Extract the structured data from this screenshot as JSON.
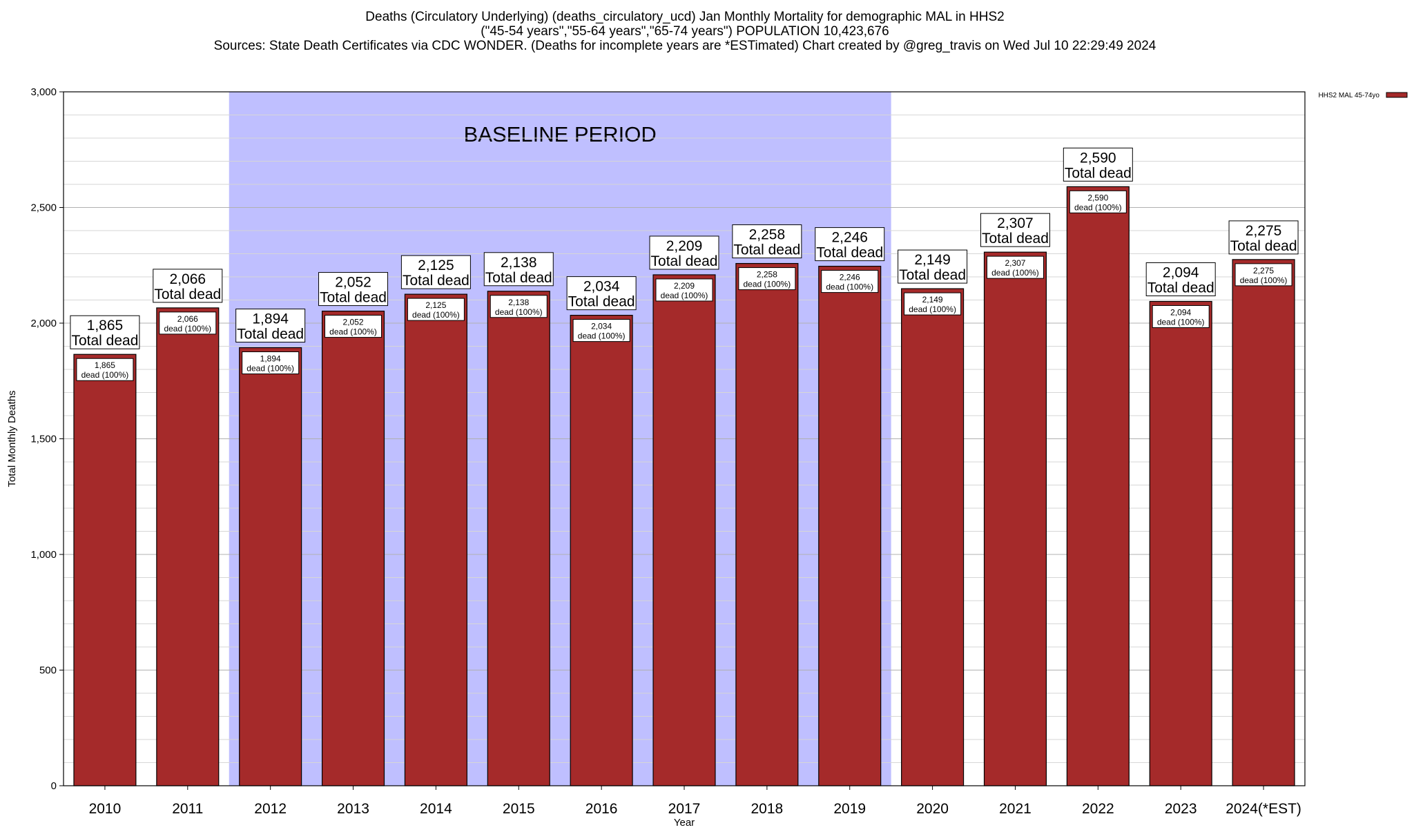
{
  "chart_data": {
    "type": "bar",
    "title_lines": [
      "Deaths (Circulatory Underlying) (deaths_circulatory_ucd) Jan Monthly Mortality for demographic MAL in HHS2",
      "(\"45-54 years\",\"55-64 years\",\"65-74 years\") POPULATION 10,423,676",
      "Sources: State Death Certificates via CDC WONDER. (Deaths for incomplete years are *ESTimated)                Chart created by @greg_travis on Wed Jul 10 22:29:49 2024"
    ],
    "xlabel": "Year",
    "ylabel": "Total Monthly Deaths",
    "ylim": [
      0,
      3000
    ],
    "yticks": [
      0,
      500,
      1000,
      1500,
      2000,
      2500,
      3000
    ],
    "ytick_labels": [
      "0",
      "500",
      "1,000",
      "1,500",
      "2,000",
      "2,500",
      "3,000"
    ],
    "grid": true,
    "legend_position": "top-right",
    "categories": [
      "2010",
      "2011",
      "2012",
      "2013",
      "2014",
      "2015",
      "2016",
      "2017",
      "2018",
      "2019",
      "2020",
      "2021",
      "2022",
      "2023",
      "2024(*EST)"
    ],
    "series": [
      {
        "name": "HHS2 MAL 45-74yo",
        "color": "#a52a2a",
        "values": [
          1865,
          2066,
          1894,
          2052,
          2125,
          2138,
          2034,
          2209,
          2258,
          2246,
          2149,
          2307,
          2590,
          2094,
          2275
        ]
      }
    ],
    "value_labels": [
      "1,865",
      "2,066",
      "1,894",
      "2,052",
      "2,125",
      "2,138",
      "2,034",
      "2,209",
      "2,258",
      "2,246",
      "2,149",
      "2,307",
      "2,590",
      "2,094",
      "2,275"
    ],
    "outer_label_suffix": "Total dead",
    "inner_label_suffix": "dead (100%)",
    "baseline_period": {
      "label": "BASELINE PERIOD",
      "start_category": "2012",
      "end_category": "2019",
      "color": "#bfbfff"
    }
  }
}
